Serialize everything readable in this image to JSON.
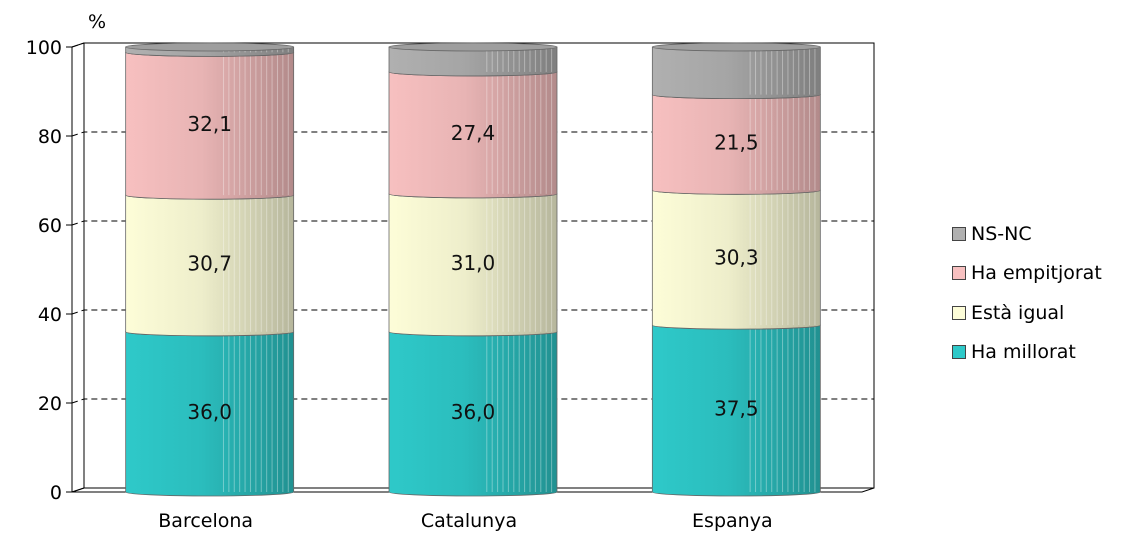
{
  "chart_data": {
    "type": "bar",
    "stacked": true,
    "unit": "%",
    "categories": [
      "Barcelona",
      "Catalunya",
      "Espanya"
    ],
    "ylim": [
      0,
      100
    ],
    "yticks": [
      "0",
      "20",
      "40",
      "60",
      "80",
      "100"
    ],
    "grid": true,
    "legend_position": "right",
    "series": [
      {
        "name": "Ha millorat",
        "values": [
          36.0,
          36.0,
          37.5
        ],
        "labels": [
          "36,0",
          "36,0",
          "37,5"
        ],
        "color": "#2ec9c9"
      },
      {
        "name": "Està igual",
        "values": [
          30.7,
          31.0,
          30.3
        ],
        "labels": [
          "30,7",
          "31,0",
          "30,3"
        ],
        "color": "#fdfdd8"
      },
      {
        "name": "Ha empitjorat",
        "values": [
          32.1,
          27.4,
          21.5
        ],
        "labels": [
          "32,1",
          "27,4",
          "21,5"
        ],
        "color": "#f7c0c0"
      },
      {
        "name": "NS-NC",
        "values": [
          1.2,
          5.6,
          10.7
        ],
        "labels": [
          "",
          "",
          ""
        ],
        "color": "#b0b0b0"
      }
    ],
    "legend_order": [
      "NS-NC",
      "Ha empitjorat",
      "Està igual",
      "Ha millorat"
    ]
  }
}
